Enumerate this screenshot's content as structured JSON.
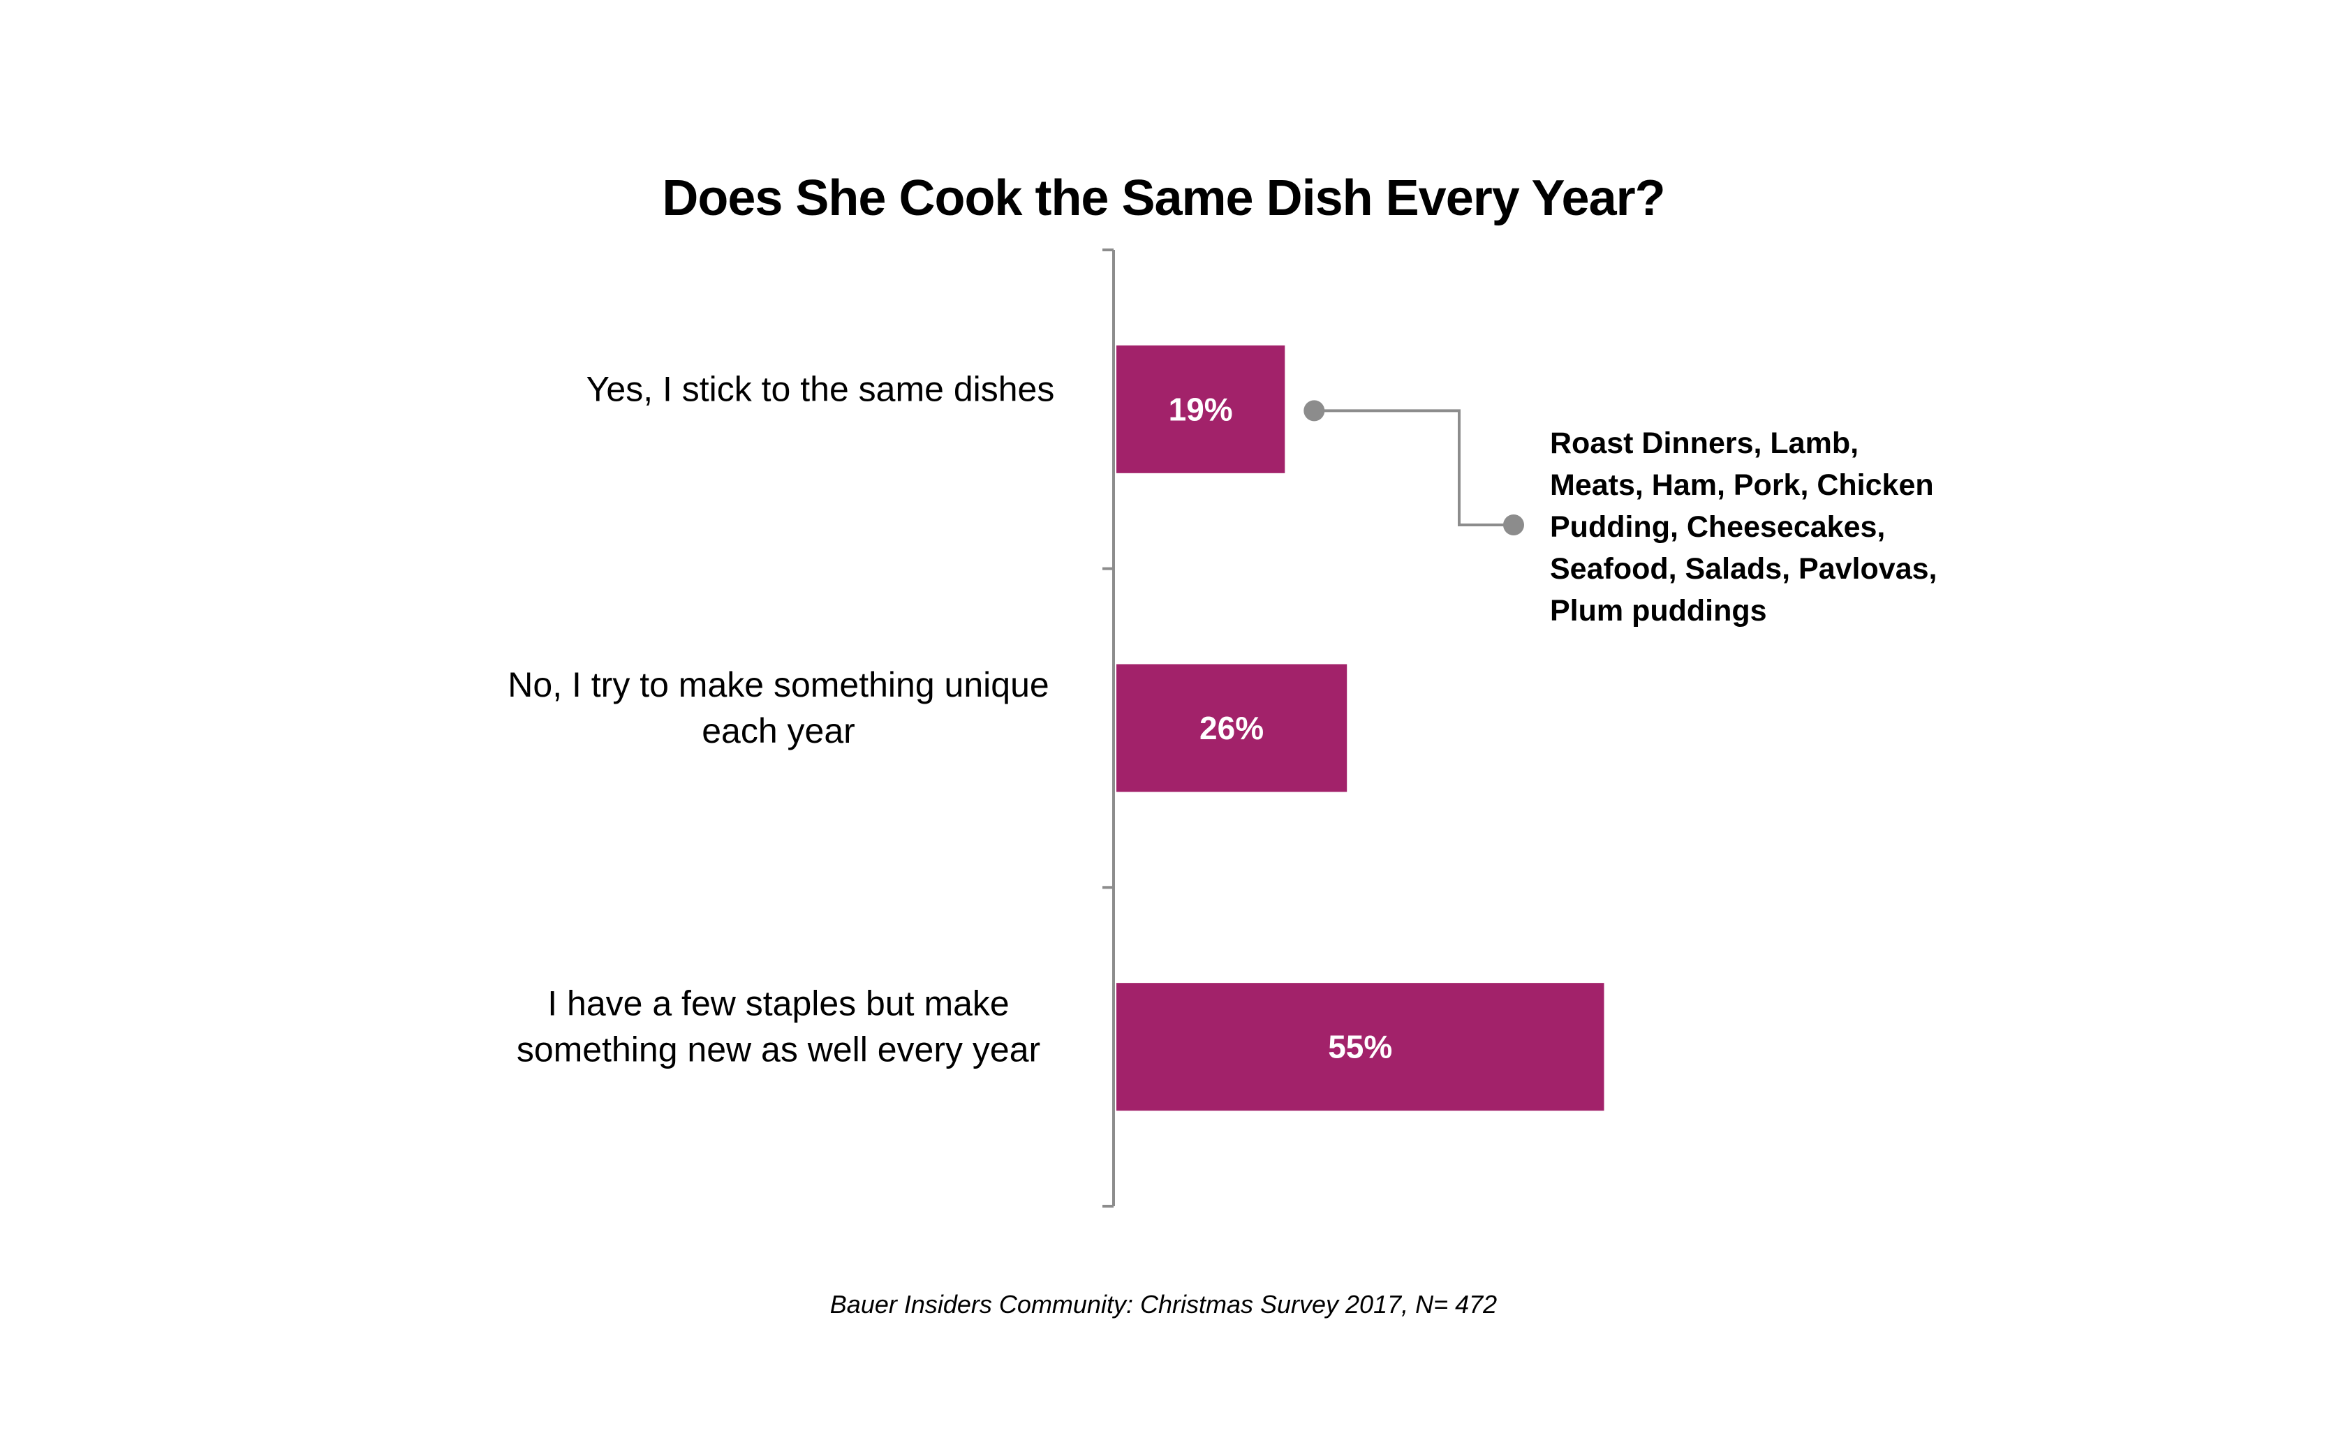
{
  "chart_data": {
    "type": "bar",
    "orientation": "horizontal",
    "title": "Does She Cook the Same Dish Every Year?",
    "categories": [
      [
        "Yes, I stick to the same dishes"
      ],
      [
        "No, I try to make something unique",
        "each year"
      ],
      [
        "I have a few staples but make",
        "something new as well every year"
      ]
    ],
    "values": [
      19,
      26,
      55
    ],
    "value_labels": [
      "19%",
      "26%",
      "55%"
    ],
    "xlim": [
      0,
      100
    ],
    "xlabel": "",
    "ylabel": "",
    "grid": false,
    "bar_color": "#A2226A",
    "value_label_color": "#FFFFFF",
    "axis_color": "#8C8C8C",
    "callout_color": "#8C8C8C",
    "annotation": {
      "lines": [
        "Roast Dinners, Lamb,",
        "Meats, Ham, Pork, Chicken",
        "Pudding, Cheesecakes,",
        "Seafood, Salads, Pavlovas,",
        "Plum puddings"
      ]
    },
    "footnote": "Bauer Insiders Community: Christmas Survey 2017, N= 472"
  }
}
